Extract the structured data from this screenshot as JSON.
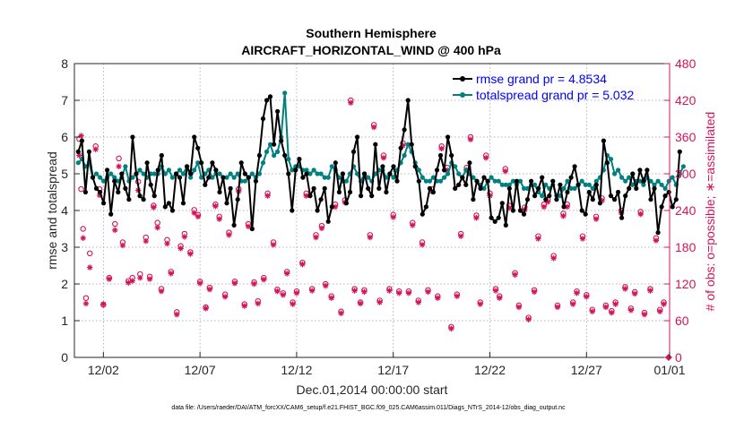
{
  "chart_data": {
    "type": "line",
    "title": "Southern Hemisphere",
    "subtitle": "AIRCRAFT_HORIZONTAL_WIND @ 400 hPa",
    "xlabel": "Dec.01,2014 00:00:00 start",
    "ylabel": "rmse and totalspread",
    "ylabel_right": "# of obs: o=possible; ∗=assimilated",
    "footnote": "data file: /Users/raeder/DAI/ATM_forcXX/CAM6_setup/f.e21.FHIST_BGC.f09_025.CAM6assim.011/Diags_NTrS_2014-12/obs_diag_output.nc",
    "xlim": [
      0.5,
      31.3
    ],
    "ylim": [
      0,
      8
    ],
    "ylim_right": [
      0,
      480
    ],
    "xticks": [
      2,
      7,
      12,
      17,
      22,
      27,
      32
    ],
    "xtick_labels": [
      "12/02",
      "12/07",
      "12/12",
      "12/17",
      "12/22",
      "12/27",
      "01/01"
    ],
    "yticks": [
      0,
      1,
      2,
      3,
      4,
      5,
      6,
      7,
      8
    ],
    "yticks_right": [
      0,
      60,
      120,
      180,
      240,
      300,
      360,
      420,
      480
    ],
    "grid": true,
    "legend_position": "top-right",
    "colors": {
      "rmse": "#000000",
      "totalspread": "#008080",
      "obs": "#d4145a",
      "legend_text": "#0000ff"
    },
    "series": [
      {
        "name": "rmse",
        "legend": "rmse grand pr = 4.8534",
        "values": [
          5.6,
          5.9,
          4.5,
          5.6,
          4.9,
          4.6,
          4.5,
          4.2,
          5.1,
          3.9,
          4.8,
          4.5,
          5.0,
          4.6,
          4.3,
          6.0,
          5.0,
          4.4,
          4.3,
          5.3,
          4.7,
          4.4,
          5.1,
          5.5,
          4.1,
          4.2,
          4.0,
          5.0,
          4.9,
          4.2,
          5.2,
          5.0,
          6.0,
          5.7,
          5.3,
          4.7,
          4.9,
          5.3,
          5.1,
          4.5,
          4.9,
          4.2,
          4.6,
          3.6,
          4.3,
          5.3,
          5.0,
          4.9,
          3.5,
          4.8,
          5.5,
          6.5,
          7.0,
          7.1,
          5.8,
          6.7,
          5.9,
          5.5,
          5.0,
          4.0,
          5.1,
          5.4,
          4.9,
          5.0,
          4.4,
          4.6,
          4.0,
          4.3,
          4.6,
          3.7,
          4.1,
          5.3,
          4.5,
          5.0,
          4.2,
          4.5,
          5.6,
          6.0,
          4.4,
          5.0,
          4.6,
          4.4,
          5.8,
          4.6,
          5.2,
          4.5,
          5.0,
          5.2,
          4.8,
          5.7,
          6.2,
          7.0,
          5.8,
          5.2,
          4.8,
          3.9,
          4.1,
          4.6,
          4.5,
          5.1,
          5.5,
          5.1,
          6.0,
          5.5,
          4.6,
          4.7,
          4.9,
          4.7,
          5.3,
          4.3,
          4.8,
          4.6,
          4.9,
          4.8,
          3.8,
          3.7,
          3.8,
          4.2,
          3.6,
          4.6,
          4.0,
          4.8,
          4.0,
          3.9,
          4.3,
          4.8,
          4.4,
          4.6,
          4.9,
          4.3,
          4.4,
          4.8,
          4.3,
          4.7,
          4.1,
          4.5,
          4.9,
          5.2,
          4.7,
          4.0,
          3.9,
          4.5,
          4.3,
          4.7,
          4.2,
          5.9,
          5.3,
          4.4,
          4.3,
          4.5,
          3.8,
          4.4,
          4.6,
          5.0,
          4.6,
          5.1,
          4.8,
          5.1,
          4.3,
          4.6,
          3.4,
          4.1,
          4.4,
          4.5,
          4.1,
          4.3,
          5.6
        ],
        "x_start": 0.7,
        "x_step": 0.1875
      },
      {
        "name": "totalspread",
        "legend": "totalspread grand pr = 5.032",
        "values": [
          5.3,
          5.4,
          5.2,
          5.3,
          4.9,
          5.0,
          4.9,
          4.8,
          4.9,
          5.0,
          4.9,
          4.8,
          4.9,
          5.2,
          4.8,
          4.9,
          5.0,
          5.1,
          5.0,
          4.9,
          5.0,
          5.0,
          5.0,
          5.2,
          5.0,
          5.1,
          4.9,
          5.0,
          5.1,
          5.0,
          5.2,
          4.9,
          5.1,
          5.3,
          4.9,
          5.0,
          5.1,
          4.9,
          5.0,
          5.0,
          4.9,
          4.9,
          5.0,
          4.9,
          5.0,
          4.8,
          4.8,
          4.9,
          5.0,
          4.9,
          5.0,
          5.3,
          5.6,
          5.8,
          5.5,
          5.6,
          6.0,
          7.2,
          5.4,
          5.1,
          5.2,
          5.2,
          5.1,
          5.1,
          5.0,
          5.1,
          5.0,
          5.0,
          4.9,
          4.9,
          5.2,
          5.1,
          4.9,
          4.8,
          4.8,
          5.0,
          5.2,
          5.0,
          4.8,
          5.0,
          4.9,
          4.8,
          5.0,
          5.1,
          5.1,
          4.9,
          5.0,
          4.9,
          5.1,
          5.3,
          5.5,
          5.8,
          5.6,
          5.3,
          5.1,
          4.9,
          4.8,
          4.8,
          4.9,
          4.8,
          4.8,
          4.9,
          5.0,
          5.3,
          5.2,
          5.0,
          4.9,
          5.1,
          5.0,
          4.9,
          4.8,
          4.7,
          4.6,
          4.8,
          4.9,
          4.8,
          4.8,
          4.7,
          4.7,
          4.7,
          4.8,
          4.7,
          4.8,
          4.6,
          4.6,
          4.7,
          4.7,
          4.5,
          4.4,
          4.7,
          4.6,
          4.7,
          4.4,
          4.4,
          4.6,
          4.8,
          4.6,
          4.6,
          4.7,
          4.8,
          4.7,
          4.7,
          4.6,
          4.8,
          4.9,
          5.1,
          5.5,
          5.4,
          5.0,
          5.1,
          4.9,
          4.8,
          4.9,
          4.7,
          4.8,
          4.8,
          4.7,
          4.9,
          4.8,
          4.7,
          4.8,
          4.7,
          4.6,
          4.8,
          4.9,
          4.7,
          5.0,
          5.2
        ],
        "x_start": 0.7,
        "x_step": 0.1875
      }
    ],
    "obs_possible": [
      [
        0.75,
        357
      ],
      [
        0.85,
        275
      ],
      [
        0.95,
        210
      ],
      [
        1.1,
        97
      ],
      [
        1.3,
        170
      ],
      [
        1.6,
        345
      ],
      [
        1.8,
        275
      ],
      [
        2.0,
        86
      ],
      [
        2.3,
        130
      ],
      [
        2.6,
        218
      ],
      [
        2.8,
        325
      ],
      [
        3.0,
        188
      ],
      [
        3.3,
        125
      ],
      [
        3.5,
        130
      ],
      [
        3.8,
        287
      ],
      [
        3.9,
        136
      ],
      [
        4.2,
        196
      ],
      [
        4.4,
        132
      ],
      [
        4.6,
        248
      ],
      [
        4.8,
        220
      ],
      [
        5.0,
        112
      ],
      [
        5.3,
        192
      ],
      [
        5.5,
        140
      ],
      [
        5.8,
        74
      ],
      [
        6.0,
        182
      ],
      [
        6.2,
        202
      ],
      [
        6.5,
        172
      ],
      [
        6.7,
        241
      ],
      [
        6.9,
        233
      ],
      [
        7.0,
        124
      ],
      [
        7.3,
        82
      ],
      [
        7.5,
        114
      ],
      [
        7.8,
        250
      ],
      [
        8.0,
        230
      ],
      [
        8.3,
        103
      ],
      [
        8.5,
        204
      ],
      [
        8.8,
        124
      ],
      [
        9.0,
        275
      ],
      [
        9.3,
        87
      ],
      [
        9.5,
        218
      ],
      [
        9.8,
        123
      ],
      [
        10.0,
        92
      ],
      [
        10.3,
        130
      ],
      [
        10.5,
        268
      ],
      [
        10.8,
        188
      ],
      [
        11.0,
        111
      ],
      [
        11.3,
        105
      ],
      [
        11.5,
        140
      ],
      [
        11.8,
        90
      ],
      [
        12.0,
        108
      ],
      [
        12.3,
        155
      ],
      [
        12.5,
        268
      ],
      [
        12.8,
        112
      ],
      [
        13.0,
        200
      ],
      [
        13.3,
        215
      ],
      [
        13.5,
        120
      ],
      [
        13.8,
        100
      ],
      [
        14.0,
        250
      ],
      [
        14.3,
        75
      ],
      [
        14.5,
        257
      ],
      [
        14.8,
        420
      ],
      [
        15.0,
        112
      ],
      [
        15.3,
        90
      ],
      [
        15.5,
        110
      ],
      [
        15.8,
        200
      ],
      [
        16.0,
        380
      ],
      [
        16.3,
        93
      ],
      [
        16.5,
        330
      ],
      [
        16.8,
        112
      ],
      [
        17.0,
        233
      ],
      [
        17.3,
        108
      ],
      [
        17.5,
        350
      ],
      [
        17.8,
        108
      ],
      [
        18.0,
        220
      ],
      [
        18.3,
        93
      ],
      [
        18.5,
        188
      ],
      [
        18.8,
        110
      ],
      [
        19.0,
        275
      ],
      [
        19.3,
        100
      ],
      [
        19.5,
        345
      ],
      [
        19.8,
        310
      ],
      [
        20.0,
        50
      ],
      [
        20.3,
        103
      ],
      [
        20.5,
        202
      ],
      [
        20.8,
        310
      ],
      [
        21.0,
        360
      ],
      [
        21.3,
        232
      ],
      [
        21.5,
        90
      ],
      [
        21.8,
        330
      ],
      [
        22.0,
        268
      ],
      [
        22.3,
        112
      ],
      [
        22.5,
        100
      ],
      [
        22.8,
        308
      ],
      [
        23.0,
        248
      ],
      [
        23.3,
        138
      ],
      [
        23.5,
        85
      ],
      [
        23.8,
        245
      ],
      [
        24.0,
        65
      ],
      [
        24.3,
        110
      ],
      [
        24.5,
        198
      ],
      [
        24.8,
        250
      ],
      [
        25.0,
        258
      ],
      [
        25.3,
        166
      ],
      [
        25.5,
        85
      ],
      [
        25.8,
        235
      ],
      [
        26.0,
        250
      ],
      [
        26.3,
        90
      ],
      [
        26.5,
        108
      ],
      [
        26.8,
        198
      ],
      [
        27.0,
        102
      ],
      [
        27.3,
        78
      ],
      [
        27.5,
        230
      ],
      [
        27.8,
        260
      ],
      [
        28.0,
        85
      ],
      [
        28.3,
        76
      ],
      [
        28.5,
        90
      ],
      [
        28.8,
        240
      ],
      [
        29.0,
        115
      ],
      [
        29.3,
        80
      ],
      [
        29.5,
        107
      ],
      [
        29.8,
        238
      ],
      [
        30.0,
        73
      ],
      [
        30.3,
        112
      ],
      [
        30.6,
        195
      ],
      [
        30.8,
        78
      ],
      [
        31.0,
        90
      ]
    ],
    "obs_assimilated": [
      [
        0.75,
        330
      ],
      [
        0.85,
        362
      ],
      [
        0.95,
        195
      ],
      [
        1.1,
        88
      ],
      [
        1.3,
        147
      ],
      [
        1.6,
        340
      ],
      [
        1.8,
        265
      ],
      [
        2.0,
        87
      ],
      [
        2.3,
        128
      ],
      [
        2.6,
        208
      ],
      [
        2.8,
        312
      ],
      [
        3.0,
        183
      ],
      [
        3.3,
        122
      ],
      [
        3.5,
        125
      ],
      [
        3.8,
        273
      ],
      [
        3.9,
        130
      ],
      [
        4.2,
        190
      ],
      [
        4.4,
        128
      ],
      [
        4.6,
        245
      ],
      [
        4.8,
        212
      ],
      [
        5.0,
        108
      ],
      [
        5.3,
        186
      ],
      [
        5.5,
        137
      ],
      [
        5.8,
        70
      ],
      [
        6.0,
        178
      ],
      [
        6.2,
        197
      ],
      [
        6.5,
        169
      ],
      [
        6.7,
        236
      ],
      [
        6.9,
        230
      ],
      [
        7.0,
        121
      ],
      [
        7.3,
        80
      ],
      [
        7.5,
        111
      ],
      [
        7.8,
        247
      ],
      [
        8.0,
        226
      ],
      [
        8.3,
        99
      ],
      [
        8.5,
        200
      ],
      [
        8.8,
        121
      ],
      [
        9.0,
        271
      ],
      [
        9.3,
        84
      ],
      [
        9.5,
        214
      ],
      [
        9.8,
        120
      ],
      [
        10.0,
        88
      ],
      [
        10.3,
        127
      ],
      [
        10.5,
        264
      ],
      [
        10.8,
        184
      ],
      [
        11.0,
        108
      ],
      [
        11.3,
        102
      ],
      [
        11.5,
        137
      ],
      [
        11.8,
        87
      ],
      [
        12.0,
        105
      ],
      [
        12.3,
        152
      ],
      [
        12.5,
        264
      ],
      [
        12.8,
        109
      ],
      [
        13.0,
        196
      ],
      [
        13.3,
        211
      ],
      [
        13.5,
        117
      ],
      [
        13.8,
        97
      ],
      [
        14.0,
        246
      ],
      [
        14.3,
        72
      ],
      [
        14.5,
        253
      ],
      [
        14.8,
        416
      ],
      [
        15.0,
        109
      ],
      [
        15.3,
        88
      ],
      [
        15.5,
        107
      ],
      [
        15.8,
        196
      ],
      [
        16.0,
        376
      ],
      [
        16.3,
        90
      ],
      [
        16.5,
        326
      ],
      [
        16.8,
        109
      ],
      [
        17.0,
        229
      ],
      [
        17.3,
        105
      ],
      [
        17.5,
        346
      ],
      [
        17.8,
        105
      ],
      [
        18.0,
        216
      ],
      [
        18.3,
        90
      ],
      [
        18.5,
        184
      ],
      [
        18.8,
        107
      ],
      [
        19.0,
        271
      ],
      [
        19.3,
        97
      ],
      [
        19.5,
        341
      ],
      [
        19.8,
        306
      ],
      [
        20.0,
        47
      ],
      [
        20.3,
        100
      ],
      [
        20.5,
        198
      ],
      [
        20.8,
        306
      ],
      [
        21.0,
        356
      ],
      [
        21.3,
        228
      ],
      [
        21.5,
        87
      ],
      [
        21.8,
        326
      ],
      [
        22.0,
        264
      ],
      [
        22.3,
        109
      ],
      [
        22.5,
        97
      ],
      [
        22.8,
        304
      ],
      [
        23.0,
        244
      ],
      [
        23.3,
        135
      ],
      [
        23.5,
        82
      ],
      [
        23.8,
        241
      ],
      [
        24.0,
        62
      ],
      [
        24.3,
        107
      ],
      [
        24.5,
        194
      ],
      [
        24.8,
        246
      ],
      [
        25.0,
        254
      ],
      [
        25.3,
        162
      ],
      [
        25.5,
        82
      ],
      [
        25.8,
        231
      ],
      [
        26.0,
        246
      ],
      [
        26.3,
        87
      ],
      [
        26.5,
        105
      ],
      [
        26.8,
        194
      ],
      [
        27.0,
        99
      ],
      [
        27.3,
        75
      ],
      [
        27.5,
        226
      ],
      [
        27.8,
        256
      ],
      [
        28.0,
        82
      ],
      [
        28.3,
        73
      ],
      [
        28.5,
        87
      ],
      [
        28.8,
        236
      ],
      [
        29.0,
        112
      ],
      [
        29.3,
        77
      ],
      [
        29.5,
        104
      ],
      [
        29.8,
        234
      ],
      [
        30.0,
        70
      ],
      [
        30.3,
        109
      ],
      [
        30.6,
        191
      ],
      [
        30.8,
        75
      ],
      [
        31.0,
        87
      ],
      [
        31.25,
        0
      ]
    ]
  }
}
